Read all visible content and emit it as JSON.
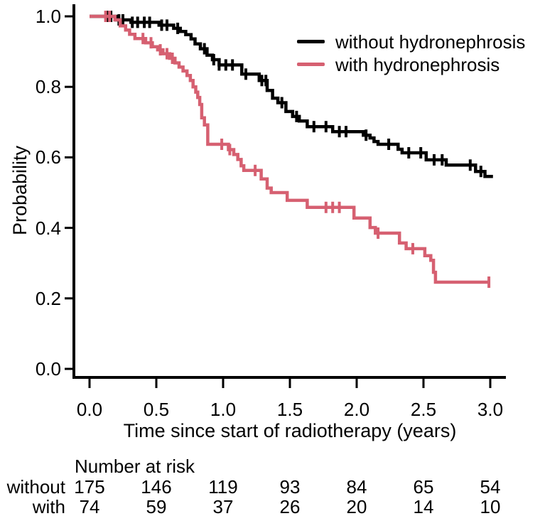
{
  "figure": {
    "background": "#ffffff",
    "text_color": "#000000"
  },
  "chart_data": {
    "type": "line",
    "subtype": "kaplan_meier_step",
    "title": "",
    "xlabel": "Time since start of radiotherapy (years)",
    "ylabel": "Probability",
    "xlim": [
      0.0,
      3.0
    ],
    "ylim": [
      0.0,
      1.0
    ],
    "grid": false,
    "legend_position": "top-right",
    "x_tick_labels": [
      "0.0",
      "0.5",
      "1.0",
      "1.5",
      "2.0",
      "2.5",
      "3.0"
    ],
    "y_tick_labels": [
      "1.0",
      "0.8",
      "0.6",
      "0.4",
      "0.2",
      "0.0"
    ],
    "series": [
      {
        "name": "without hydronephrosis",
        "color": "#000000",
        "end_time": 3.02,
        "steps": [
          [
            0.0,
            1.0
          ],
          [
            0.2,
            0.99
          ],
          [
            0.31,
            0.983
          ],
          [
            0.52,
            0.975
          ],
          [
            0.63,
            0.966
          ],
          [
            0.68,
            0.957
          ],
          [
            0.72,
            0.948
          ],
          [
            0.76,
            0.936
          ],
          [
            0.79,
            0.922
          ],
          [
            0.83,
            0.908
          ],
          [
            0.88,
            0.89
          ],
          [
            0.92,
            0.877
          ],
          [
            0.97,
            0.862
          ],
          [
            1.14,
            0.836
          ],
          [
            1.27,
            0.818
          ],
          [
            1.33,
            0.79
          ],
          [
            1.37,
            0.768
          ],
          [
            1.41,
            0.755
          ],
          [
            1.47,
            0.73
          ],
          [
            1.52,
            0.716
          ],
          [
            1.57,
            0.703
          ],
          [
            1.63,
            0.687
          ],
          [
            1.82,
            0.673
          ],
          [
            2.05,
            0.663
          ],
          [
            2.1,
            0.655
          ],
          [
            2.13,
            0.645
          ],
          [
            2.16,
            0.637
          ],
          [
            2.31,
            0.623
          ],
          [
            2.34,
            0.613
          ],
          [
            2.52,
            0.593
          ],
          [
            2.67,
            0.578
          ],
          [
            2.89,
            0.56
          ],
          [
            2.96,
            0.546
          ]
        ],
        "censor_times": [
          0.13,
          0.16,
          0.22,
          0.25,
          0.32,
          0.36,
          0.41,
          0.45,
          0.54,
          0.58,
          0.66,
          0.86,
          0.93,
          0.97,
          1.02,
          1.07,
          1.17,
          1.29,
          1.32,
          1.44,
          1.55,
          1.68,
          1.77,
          1.87,
          1.92,
          2.07,
          2.24,
          2.39,
          2.48,
          2.58,
          2.64,
          2.85,
          2.93
        ]
      },
      {
        "name": "with hydronephrosis",
        "color": "#d66071",
        "end_time": 3.0,
        "steps": [
          [
            0.0,
            1.0
          ],
          [
            0.19,
            0.99
          ],
          [
            0.23,
            0.973
          ],
          [
            0.27,
            0.961
          ],
          [
            0.3,
            0.949
          ],
          [
            0.34,
            0.937
          ],
          [
            0.42,
            0.925
          ],
          [
            0.47,
            0.914
          ],
          [
            0.51,
            0.905
          ],
          [
            0.55,
            0.894
          ],
          [
            0.6,
            0.881
          ],
          [
            0.64,
            0.868
          ],
          [
            0.67,
            0.856
          ],
          [
            0.7,
            0.845
          ],
          [
            0.73,
            0.832
          ],
          [
            0.755,
            0.818
          ],
          [
            0.775,
            0.8
          ],
          [
            0.795,
            0.785
          ],
          [
            0.81,
            0.77
          ],
          [
            0.825,
            0.75
          ],
          [
            0.84,
            0.712
          ],
          [
            0.86,
            0.692
          ],
          [
            0.885,
            0.637
          ],
          [
            1.04,
            0.622
          ],
          [
            1.08,
            0.608
          ],
          [
            1.11,
            0.594
          ],
          [
            1.135,
            0.576
          ],
          [
            1.155,
            0.563
          ],
          [
            1.285,
            0.539
          ],
          [
            1.33,
            0.513
          ],
          [
            1.36,
            0.5
          ],
          [
            1.48,
            0.478
          ],
          [
            1.63,
            0.458
          ],
          [
            1.98,
            0.428
          ],
          [
            2.1,
            0.401
          ],
          [
            2.14,
            0.385
          ],
          [
            2.32,
            0.357
          ],
          [
            2.37,
            0.341
          ],
          [
            2.51,
            0.321
          ],
          [
            2.555,
            0.308
          ],
          [
            2.575,
            0.274
          ],
          [
            2.59,
            0.246
          ]
        ],
        "censor_times": [
          0.12,
          0.15,
          0.4,
          0.46,
          0.53,
          0.58,
          0.62,
          0.99,
          1.05,
          1.24,
          1.77,
          1.82,
          1.87,
          2.16,
          2.42,
          2.99
        ]
      }
    ],
    "risk_table": {
      "title": "Number at risk",
      "times": [
        0.0,
        0.5,
        1.0,
        1.5,
        2.0,
        2.5,
        3.0
      ],
      "rows": [
        {
          "label": "without",
          "counts": [
            175,
            146,
            119,
            93,
            84,
            65,
            54
          ]
        },
        {
          "label": "with",
          "counts": [
            74,
            59,
            37,
            26,
            20,
            14,
            10
          ]
        }
      ]
    }
  }
}
